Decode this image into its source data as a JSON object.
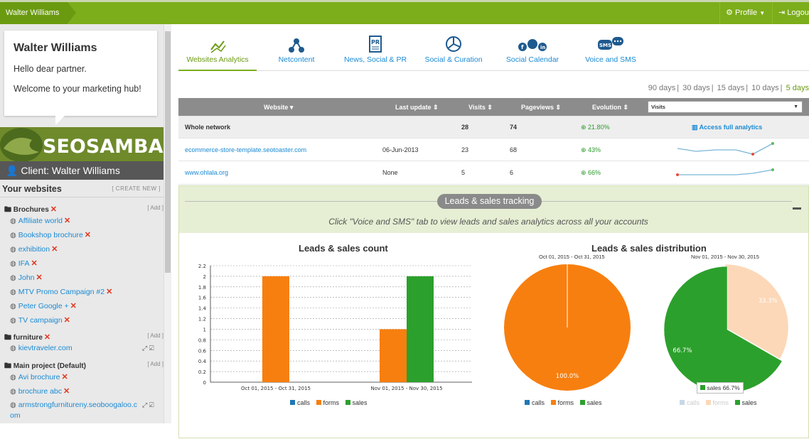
{
  "header": {
    "crumb": "Walter Williams",
    "profile_label": "Profile",
    "logout_label": "Logout"
  },
  "sidebar": {
    "welcome_name": "Walter Williams",
    "welcome_greeting": "Hello dear partner.",
    "welcome_text": "Welcome to your marketing hub!",
    "logo_text": "SEOSAMBA",
    "client_label": "Client: Walter Williams",
    "your_websites": "Your websites",
    "create_new": "[ CREATE NEW ]",
    "add_label": "[ Add ]",
    "groups": [
      {
        "name": "Brochures",
        "sites": [
          "Affiliate world",
          "Bookshop brochure",
          "exhibition",
          "IFA",
          "John",
          "MTV Promo Campaign #2",
          "Peter Google +",
          "TV campaign"
        ]
      },
      {
        "name": "furniture",
        "sites": [
          "kievtraveler.com"
        ]
      },
      {
        "name": "Main project (Default)",
        "sites": [
          "Avi brochure",
          "brochure abc",
          "armstrongfurnitureny.seoboogaloo.c",
          "om"
        ]
      }
    ]
  },
  "tabs": [
    {
      "label": "Websites Analytics",
      "icon": "trending-icon"
    },
    {
      "label": "Netcontent",
      "icon": "network-icon"
    },
    {
      "label": "News, Social & PR",
      "icon": "pr-icon"
    },
    {
      "label": "Social & Curation",
      "icon": "chart-pie-icon"
    },
    {
      "label": "Social Calendar",
      "icon": "social-icons"
    },
    {
      "label": "Voice and SMS",
      "icon": "sms-icon"
    }
  ],
  "days": [
    "90 days",
    "30 days",
    "15 days",
    "10 days",
    "5 days"
  ],
  "days_separator": "|",
  "table": {
    "headers": [
      "Website",
      "Last update",
      "Visits",
      "Pageviews",
      "Evolution"
    ],
    "select_value": "Visits",
    "rows": [
      {
        "website": "Whole network",
        "update": "",
        "visits": "28",
        "pageviews": "74",
        "evolution": "21.80%",
        "link": "Access full analytics"
      },
      {
        "website": "ecommerce-store-template.seotoaster.com",
        "update": "06-Jun-2013",
        "visits": "23",
        "pageviews": "68",
        "evolution": "43%"
      },
      {
        "website": "www.ohlala.org",
        "update": "None",
        "visits": "5",
        "pageviews": "6",
        "evolution": "66%"
      }
    ]
  },
  "leads": {
    "pill": "Leads & sales tracking",
    "message": "Click \"Voice and SMS\" tab to view leads and sales analytics across all your accounts"
  },
  "colors": {
    "calls": "#1f78b4",
    "forms": "#f77f0f",
    "sales": "#2ca02c",
    "sales_light": "#fcd8b8"
  },
  "chart_data": [
    {
      "type": "bar",
      "title": "Leads & sales count",
      "categories": [
        "Oct 01, 2015 - Oct 31, 2015",
        "Nov 01, 2015 - Nov 30, 2015"
      ],
      "series": [
        {
          "name": "calls",
          "values": [
            0,
            0
          ]
        },
        {
          "name": "forms",
          "values": [
            2,
            1
          ]
        },
        {
          "name": "sales",
          "values": [
            0,
            2
          ]
        }
      ],
      "ylim": [
        0,
        2.2
      ],
      "yticks": [
        "0",
        "0.2",
        "0.4",
        "0.6",
        "0.8",
        "1",
        "1.2",
        "1.4",
        "1.6",
        "1.8",
        "2",
        "2.2"
      ]
    },
    {
      "type": "pie",
      "title": "Leads & sales distribution",
      "charts": [
        {
          "subtitle": "Oct 01, 2015 - Oct 31, 2015",
          "slices": [
            {
              "name": "forms",
              "value": 100.0,
              "label": "100.0%"
            }
          ]
        },
        {
          "subtitle": "Nov 01, 2015 - Nov 30, 2015",
          "slices": [
            {
              "name": "forms",
              "value": 33.3,
              "label": "33.3%"
            },
            {
              "name": "sales",
              "value": 66.7,
              "label": "66.7%"
            }
          ],
          "tooltip": "sales 66.7%"
        }
      ],
      "legend": [
        "calls",
        "forms",
        "sales"
      ]
    }
  ]
}
